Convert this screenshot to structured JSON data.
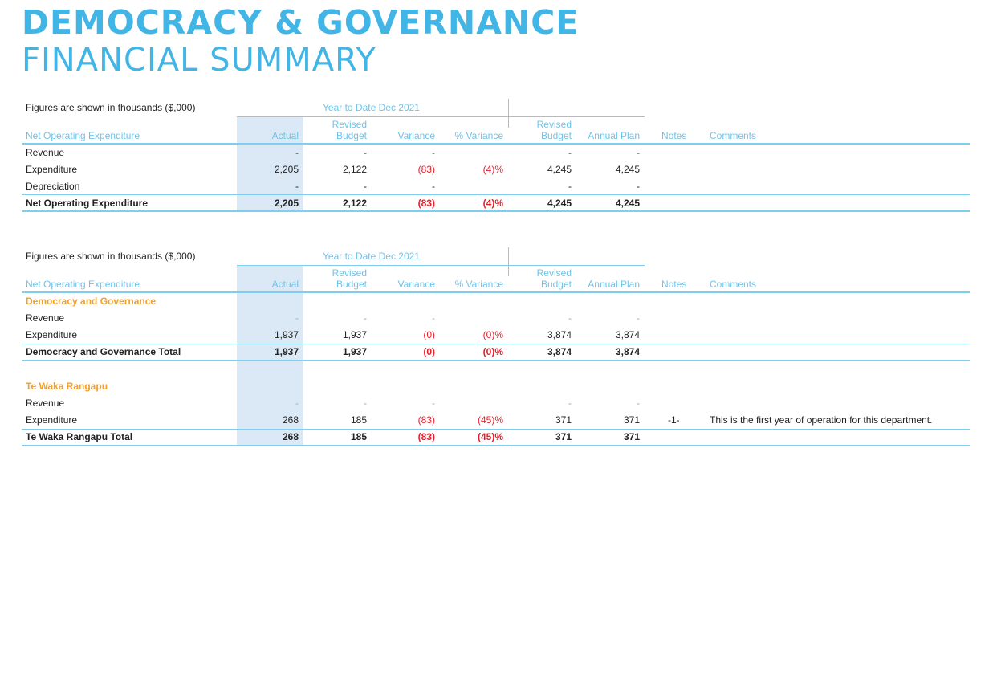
{
  "title": {
    "line1": "DEMOCRACY & GOVERNANCE",
    "line2": "FINANCIAL SUMMARY"
  },
  "table1": {
    "note": "Figures are shown in thousands ($,000)",
    "period": "Year to Date  Dec 2021",
    "headers": {
      "label": "Net Operating Expenditure",
      "actual": "Actual",
      "revised_budget_1": "Revised",
      "revised_budget_2": "Budget",
      "variance": "Variance",
      "pct_variance": "% Variance",
      "rev_budget_1": "Revised",
      "rev_budget_2": "Budget",
      "annual_plan": "Annual Plan",
      "notes": "Notes",
      "comments": "Comments"
    },
    "rows": [
      {
        "label": "Revenue",
        "actual": "-",
        "rev": "-",
        "var": "-",
        "pct": "",
        "rb": "-",
        "ap": "-"
      },
      {
        "label": "Expenditure",
        "actual": "2,205",
        "rev": "2,122",
        "var": "(83)",
        "pct": "(4)%",
        "rb": "4,245",
        "ap": "4,245"
      },
      {
        "label": "Depreciation",
        "actual": "-",
        "rev": "-",
        "var": "-",
        "pct": "",
        "rb": "-",
        "ap": "-"
      },
      {
        "label": "Net Operating Expenditure",
        "actual": "2,205",
        "rev": "2,122",
        "var": "(83)",
        "pct": "(4)%",
        "rb": "4,245",
        "ap": "4,245"
      }
    ]
  },
  "table2": {
    "note": "Figures are shown in thousands ($,000)",
    "period": "Year to Date  Dec 2021",
    "headers": {
      "label": "Net Operating Expenditure",
      "actual": "Actual",
      "revised_budget_1": "Revised",
      "revised_budget_2": "Budget",
      "variance": "Variance",
      "pct_variance": "% Variance",
      "rev_budget_1": "Revised",
      "rev_budget_2": "Budget",
      "annual_plan": "Annual Plan",
      "notes": "Notes",
      "comments": "Comments"
    },
    "sections": [
      {
        "name": "Democracy and Governance",
        "rows": [
          {
            "label": "Revenue",
            "actual": "-",
            "rev": "-",
            "var": "-",
            "pct": "",
            "rb": "-",
            "ap": "-"
          },
          {
            "label": "Expenditure",
            "actual": "1,937",
            "rev": "1,937",
            "var": "(0)",
            "pct": "(0)%",
            "rb": "3,874",
            "ap": "3,874"
          }
        ],
        "total": {
          "label": "Democracy and Governance Total",
          "actual": "1,937",
          "rev": "1,937",
          "var": "(0)",
          "pct": "(0)%",
          "rb": "3,874",
          "ap": "3,874"
        }
      },
      {
        "name": "Te Waka Rangapu",
        "rows": [
          {
            "label": "Revenue",
            "actual": "-",
            "rev": "-",
            "var": "-",
            "pct": "",
            "rb": "-",
            "ap": "-"
          },
          {
            "label": "Expenditure",
            "actual": "268",
            "rev": "185",
            "var": "(83)",
            "pct": "(45)%",
            "rb": "371",
            "ap": "371",
            "note": "-1-",
            "comment": "This is the first year of operation for this department."
          }
        ],
        "total": {
          "label": "Te Waka Rangapu Total",
          "actual": "268",
          "rev": "185",
          "var": "(83)",
          "pct": "(45)%",
          "rb": "371",
          "ap": "371"
        }
      }
    ]
  },
  "colors": {
    "accent": "#41b6e6",
    "negative": "#e8202a",
    "section": "#f4a02a",
    "actual_bg": "#dbe9f6"
  }
}
